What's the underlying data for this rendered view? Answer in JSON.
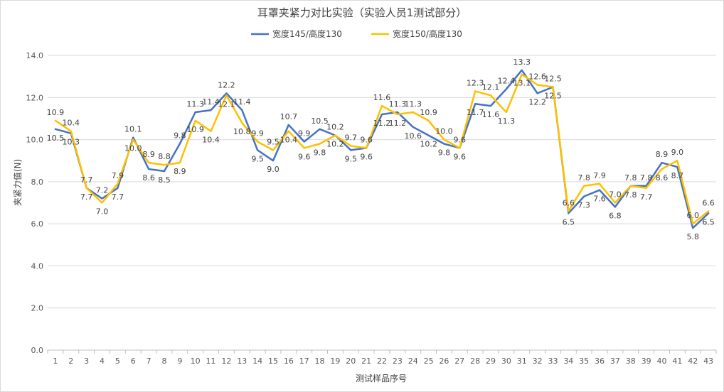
{
  "chart_data": {
    "type": "line",
    "title": "耳罩夹紧力对比实验（实验人员1测试部分）",
    "xlabel": "测试样品序号",
    "ylabel": "夹紧力值(N)",
    "ylim": [
      0,
      14
    ],
    "yticks": [
      "0.0",
      "2.0",
      "4.0",
      "6.0",
      "8.0",
      "10.0",
      "12.0",
      "14.0"
    ],
    "grid": true,
    "legend_position": "top",
    "categories": [
      "1",
      "2",
      "3",
      "4",
      "5",
      "6",
      "7",
      "8",
      "9",
      "10",
      "11",
      "12",
      "13",
      "14",
      "15",
      "16",
      "17",
      "18",
      "19",
      "20",
      "21",
      "22",
      "23",
      "24",
      "25",
      "26",
      "27",
      "28",
      "29",
      "30",
      "31",
      "32",
      "33",
      "34",
      "35",
      "36",
      "37",
      "38",
      "39",
      "40",
      "41",
      "42",
      "43"
    ],
    "series": [
      {
        "name": "宽度145/高度130",
        "color": "#4472C4",
        "values": [
          10.5,
          10.3,
          7.7,
          7.2,
          7.7,
          10.1,
          8.6,
          8.5,
          9.8,
          11.3,
          11.4,
          12.2,
          11.4,
          9.5,
          9.0,
          10.7,
          9.9,
          10.5,
          10.2,
          9.5,
          9.6,
          11.2,
          11.3,
          10.6,
          10.2,
          9.8,
          9.6,
          11.7,
          11.6,
          12.4,
          13.3,
          12.2,
          12.5,
          6.5,
          7.3,
          7.6,
          6.8,
          7.8,
          7.8,
          8.9,
          8.7,
          5.8,
          6.5
        ],
        "labels": [
          "10.5",
          "10.3",
          "7.7",
          "7.2",
          "7.7",
          "10.1",
          "8.6",
          "8.5",
          "9.8",
          "11.3",
          "11.4",
          "12.2",
          "11.4",
          "9.5",
          "9.0",
          "10.7",
          "9.9",
          "10.5",
          "10.2",
          "9.5",
          "9.6",
          "11.2",
          "11.3",
          "10.6",
          "10.2",
          "9.8",
          "9.6",
          "11.7",
          "11.6",
          "12.4",
          "13.3",
          "12.2",
          "12.5",
          "6.5",
          "7.3",
          "7.6",
          "6.8",
          "7.8",
          "7.8",
          "8.9",
          "8.7",
          "5.8",
          "6.5"
        ]
      },
      {
        "name": "宽度150/高度130",
        "color": "#FFC000",
        "values": [
          10.9,
          10.4,
          7.7,
          7.0,
          7.9,
          10.0,
          8.9,
          8.8,
          8.9,
          10.9,
          10.4,
          12.1,
          10.8,
          9.9,
          9.5,
          10.4,
          9.6,
          9.8,
          10.2,
          9.7,
          9.6,
          11.6,
          11.2,
          11.3,
          10.9,
          10.0,
          9.6,
          12.3,
          12.1,
          11.3,
          13.1,
          12.6,
          12.5,
          6.6,
          7.8,
          7.9,
          7.0,
          7.8,
          7.7,
          8.6,
          9.0,
          6.0,
          6.6
        ],
        "labels": [
          "10.9",
          "10.4",
          "7.7",
          "7.0",
          "7.9",
          "10.0",
          "8.9",
          "8.8",
          "8.9",
          "10.9",
          "10.4",
          "12.1",
          "10.8",
          "9.9",
          "9.5",
          "10.4",
          "9.6",
          "9.8",
          "10.2",
          "9.7",
          "9.6",
          "11.6",
          "11.2",
          "11.3",
          "10.9",
          "10.0",
          "9.6",
          "12.3",
          "12.1",
          "11.3",
          "13.1",
          "12.6",
          "12.5",
          "6.6",
          "7.8",
          "7.9",
          "7.0",
          "7.8",
          "7.7",
          "8.6",
          "9.0",
          "6.0",
          "6.6"
        ]
      }
    ]
  }
}
